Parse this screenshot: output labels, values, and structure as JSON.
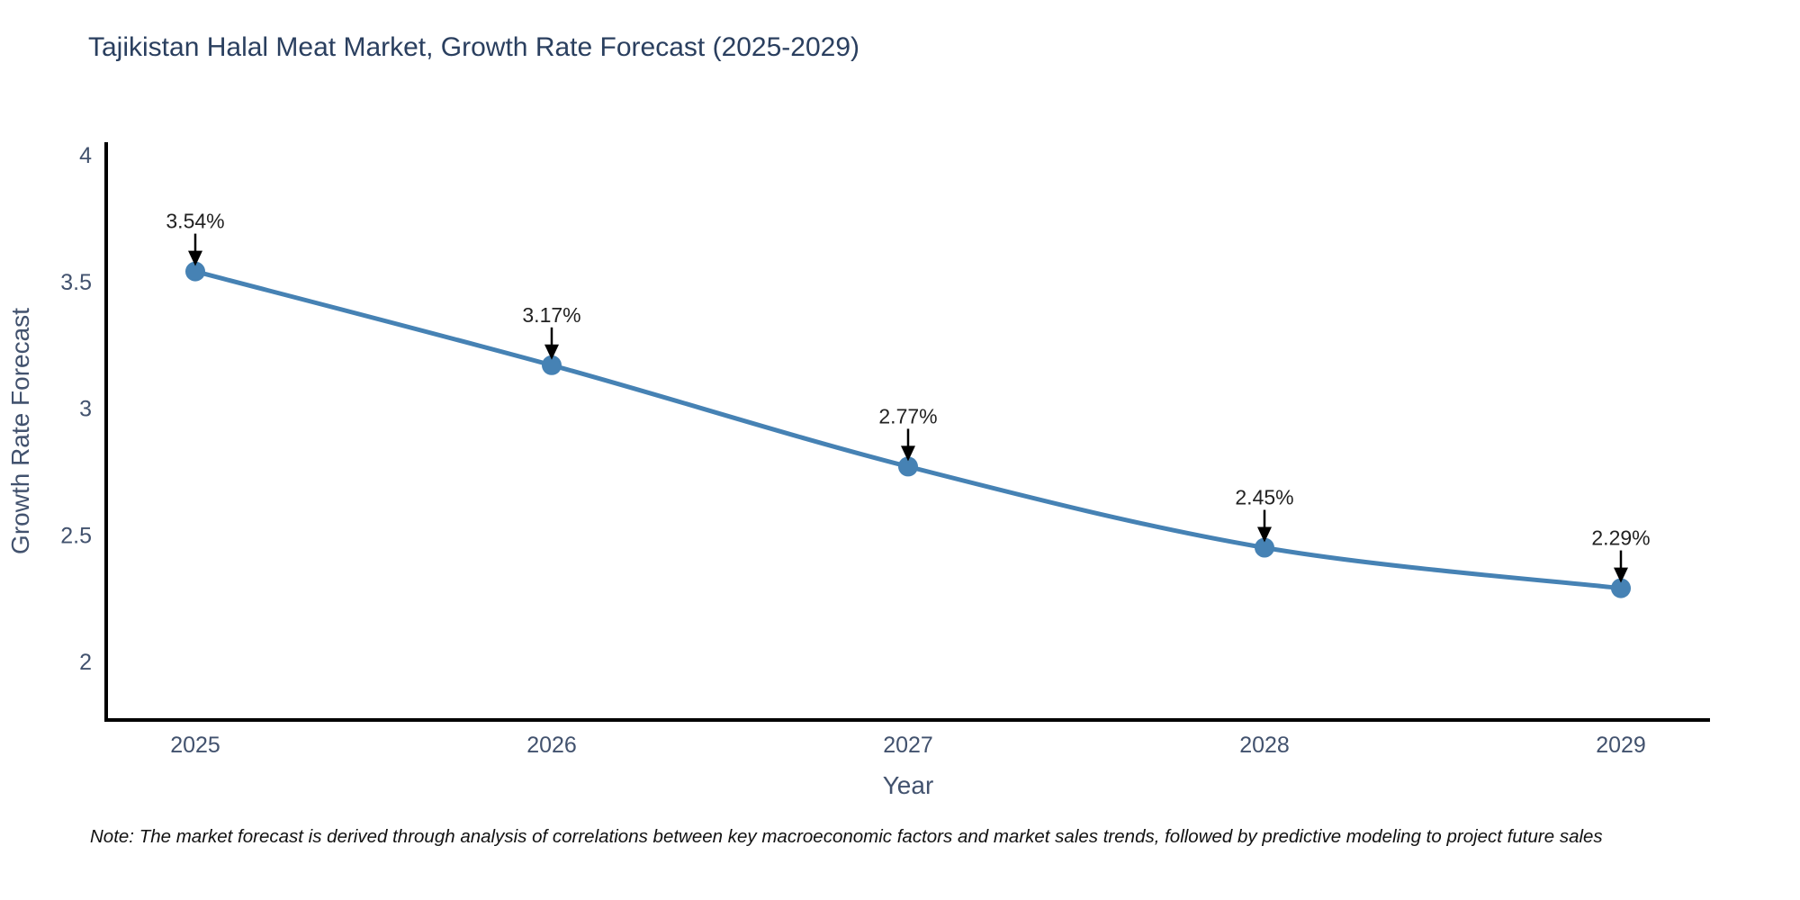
{
  "title": "Tajikistan Halal Meat Market, Growth Rate Forecast (2025-2029)",
  "note": "Note: The market forecast is derived through analysis of correlations between key macroeconomic factors and market sales trends, followed by predictive modeling to project future sales",
  "chart_data": {
    "type": "line",
    "title": "Tajikistan Halal Meat Market, Growth Rate Forecast (2025-2029)",
    "xlabel": "Year",
    "ylabel": "Growth Rate Forecast",
    "x": [
      2025,
      2026,
      2027,
      2028,
      2029
    ],
    "values": [
      3.54,
      3.17,
      2.77,
      2.45,
      2.29
    ],
    "point_labels": [
      "3.54%",
      "3.17%",
      "2.77%",
      "2.45%",
      "2.29%"
    ],
    "xtick_labels": [
      "2025",
      "2026",
      "2027",
      "2028",
      "2029"
    ],
    "yticks": [
      2,
      2.5,
      3,
      3.5,
      4
    ],
    "ytick_labels": [
      "2",
      "2.5",
      "3",
      "3.5",
      "4"
    ],
    "xlim": [
      2024.75,
      2029.25
    ],
    "ylim": [
      1.77,
      4.05
    ],
    "grid": false,
    "legend": "none",
    "annotation_style": "black-arrow-down-to-point",
    "colors": {
      "line": "#4682b4",
      "marker": "#4682b4",
      "annotation_text": "#222222",
      "arrow": "#000000",
      "axis": "#000000",
      "title": "#2a3f5f",
      "tick": "#42526e",
      "note": "#111111"
    }
  }
}
